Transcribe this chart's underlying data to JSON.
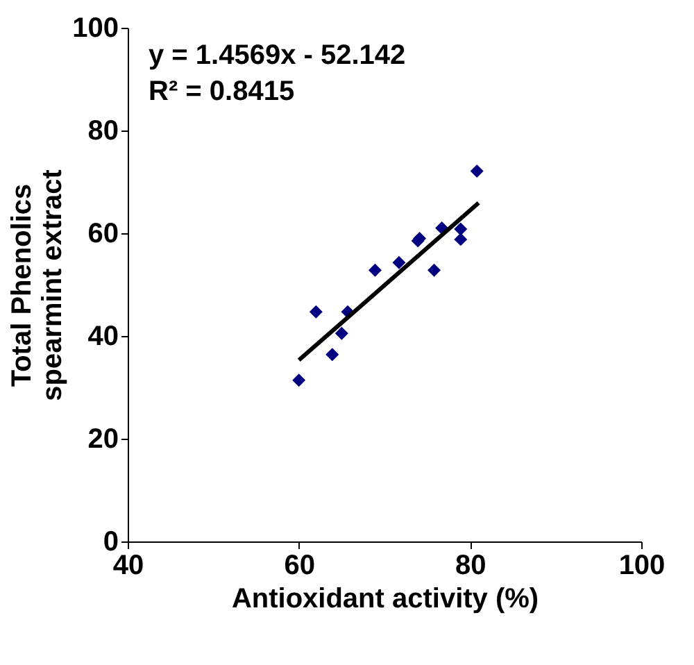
{
  "chart_data": {
    "type": "scatter",
    "xlabel": "Antioxidant activity (%)",
    "ylabel": "Total Phenolics\nspearmint extract",
    "annotations": [
      "y = 1.4569x - 52.142",
      "R² = 0.8415"
    ],
    "xlim": [
      40,
      100
    ],
    "xticks": [
      40,
      60,
      80,
      100
    ],
    "ylim": [
      0,
      100
    ],
    "yticks": [
      0,
      20,
      40,
      60,
      80,
      100
    ],
    "grid": false,
    "marker": "diamond",
    "series": [
      {
        "color": "#000080",
        "x": [
          60,
          62,
          63.9,
          65,
          65.7,
          68.9,
          71.7,
          73.9,
          74.1,
          75.8,
          76.7,
          78.9,
          78.9,
          80.8
        ],
        "values": [
          31.4,
          44.7,
          36.4,
          40.5,
          44.7,
          52.8,
          54.3,
          58.5,
          59,
          52.8,
          61,
          60.8,
          58.8,
          72.1
        ]
      },
      {
        "type": "line",
        "color": "#000000",
        "line_style": "solid",
        "marker": "none",
        "x": [
          60,
          81
        ],
        "values": [
          35.3,
          65.9
        ]
      }
    ]
  }
}
